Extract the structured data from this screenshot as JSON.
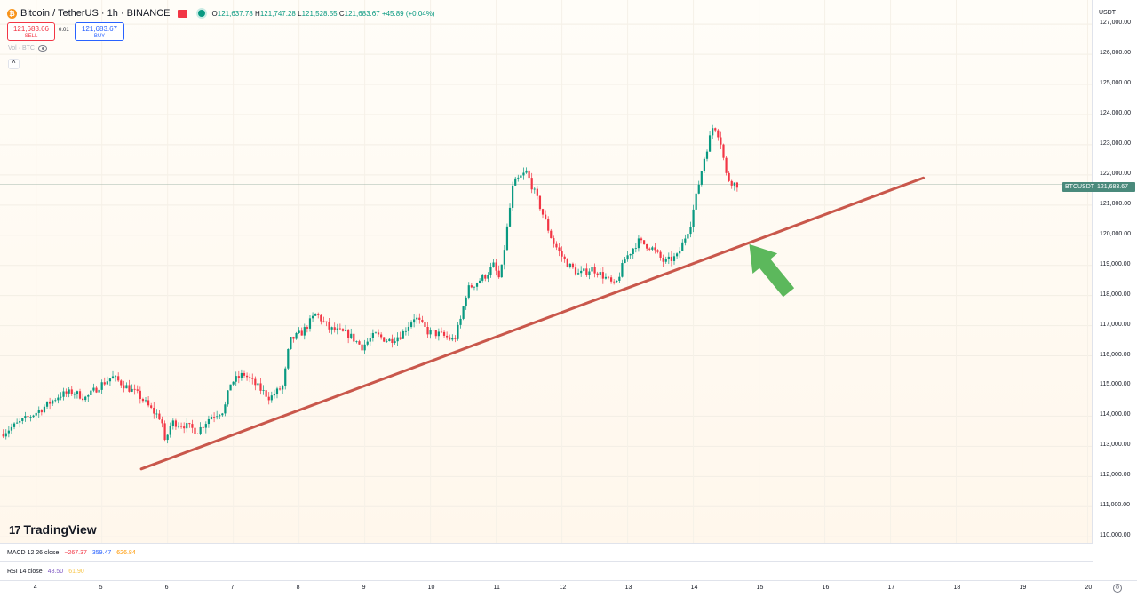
{
  "header": {
    "symbol_title": "Bitcoin / TetherUS · 1h · BINANCE",
    "btc_glyph": "₿",
    "ohlc": {
      "o_label": "O",
      "o": "121,637.78",
      "h_label": "H",
      "h": "121,747.28",
      "l_label": "L",
      "l": "121,528.55",
      "c_label": "C",
      "c": "121,683.67",
      "change": "+45.89 (+0.04%)"
    }
  },
  "trade": {
    "sell_price": "121,683.66",
    "sell_label": "SELL",
    "spread": "0.01",
    "buy_price": "121,683.67",
    "buy_label": "BUY"
  },
  "volume_label": "Vol · BTC",
  "collapse_glyph": "^",
  "logo_mark": "17",
  "logo_text": "TradingView",
  "currency_button": "USDT",
  "price_tag": {
    "symbol": "BTCUSDT",
    "value": "121,683.67"
  },
  "indicators": {
    "macd": {
      "name": "MACD 12 26 close",
      "v1": "−267.37",
      "v2": "359.47",
      "v3": "626.84"
    },
    "rsi": {
      "name": "RSI 14 close",
      "v1": "48.50",
      "v2": "61.90"
    }
  },
  "settings_icon": "gear-icon",
  "colors": {
    "up": "#089981",
    "down": "#f23645",
    "trendline": "#c9574b",
    "arrow": "#5cb85c"
  },
  "chart_data": {
    "type": "candlestick",
    "y_ticks": [
      "127,000.00",
      "126,000.00",
      "125,000.00",
      "124,000.00",
      "123,000.00",
      "122,000.00",
      "121,000.00",
      "120,000.00",
      "119,000.00",
      "118,000.00",
      "117,000.00",
      "116,000.00",
      "115,000.00",
      "114,000.00",
      "113,000.00",
      "112,000.00",
      "111,000.00",
      "110,000.00"
    ],
    "y_tick_values": [
      127000,
      126000,
      125000,
      124000,
      123000,
      122000,
      121000,
      120000,
      119000,
      118000,
      117000,
      116000,
      115000,
      114000,
      113000,
      112000,
      111000,
      110000
    ],
    "ylim": [
      109800,
      127800
    ],
    "x_ticks": [
      "4",
      "5",
      "6",
      "7",
      "8",
      "9",
      "10",
      "11",
      "12",
      "13",
      "14",
      "15",
      "16",
      "17",
      "18",
      "19",
      "20"
    ],
    "x_tick_days": [
      4,
      5,
      6,
      7,
      8,
      9,
      10,
      11,
      12,
      13,
      14,
      15,
      16,
      17,
      18,
      19,
      20
    ],
    "xlim": [
      3.45,
      20.75
    ],
    "last_price": 121683.67,
    "price_path": [
      [
        3.5,
        113400
      ],
      [
        3.8,
        113800
      ],
      [
        4.1,
        114200
      ],
      [
        4.4,
        114700
      ],
      [
        4.6,
        114800
      ],
      [
        4.8,
        114600
      ],
      [
        5.0,
        115000
      ],
      [
        5.2,
        115300
      ],
      [
        5.4,
        115000
      ],
      [
        5.6,
        114700
      ],
      [
        5.8,
        114200
      ],
      [
        5.95,
        113900
      ],
      [
        6.0,
        113100
      ],
      [
        6.1,
        113800
      ],
      [
        6.3,
        113700
      ],
      [
        6.5,
        113500
      ],
      [
        6.7,
        114000
      ],
      [
        6.9,
        114200
      ],
      [
        7.0,
        115100
      ],
      [
        7.2,
        115400
      ],
      [
        7.4,
        115000
      ],
      [
        7.6,
        114600
      ],
      [
        7.8,
        115000
      ],
      [
        7.9,
        116500
      ],
      [
        8.1,
        116800
      ],
      [
        8.3,
        117400
      ],
      [
        8.5,
        116900
      ],
      [
        8.8,
        116700
      ],
      [
        9.0,
        116300
      ],
      [
        9.2,
        116700
      ],
      [
        9.4,
        116500
      ],
      [
        9.6,
        116700
      ],
      [
        9.8,
        117300
      ],
      [
        10.0,
        116800
      ],
      [
        10.2,
        116700
      ],
      [
        10.4,
        116500
      ],
      [
        10.5,
        117200
      ],
      [
        10.6,
        118200
      ],
      [
        10.9,
        118700
      ],
      [
        11.0,
        119000
      ],
      [
        11.1,
        118500
      ],
      [
        11.3,
        121700
      ],
      [
        11.5,
        122100
      ],
      [
        11.7,
        121000
      ],
      [
        11.9,
        119800
      ],
      [
        12.1,
        119100
      ],
      [
        12.3,
        118700
      ],
      [
        12.5,
        118900
      ],
      [
        12.7,
        118600
      ],
      [
        12.85,
        118300
      ],
      [
        13.0,
        119200
      ],
      [
        13.2,
        119800
      ],
      [
        13.4,
        119600
      ],
      [
        13.6,
        119100
      ],
      [
        13.8,
        119300
      ],
      [
        14.0,
        120400
      ],
      [
        14.2,
        122500
      ],
      [
        14.35,
        123700
      ],
      [
        14.45,
        123200
      ],
      [
        14.55,
        121900
      ],
      [
        14.68,
        121683
      ]
    ],
    "trendline": {
      "start": [
        5.6,
        112250
      ],
      "end": [
        17.5,
        121900
      ]
    },
    "annotation_arrow": {
      "tip": [
        14.85,
        119700
      ],
      "tail": [
        15.45,
        118100
      ]
    }
  }
}
